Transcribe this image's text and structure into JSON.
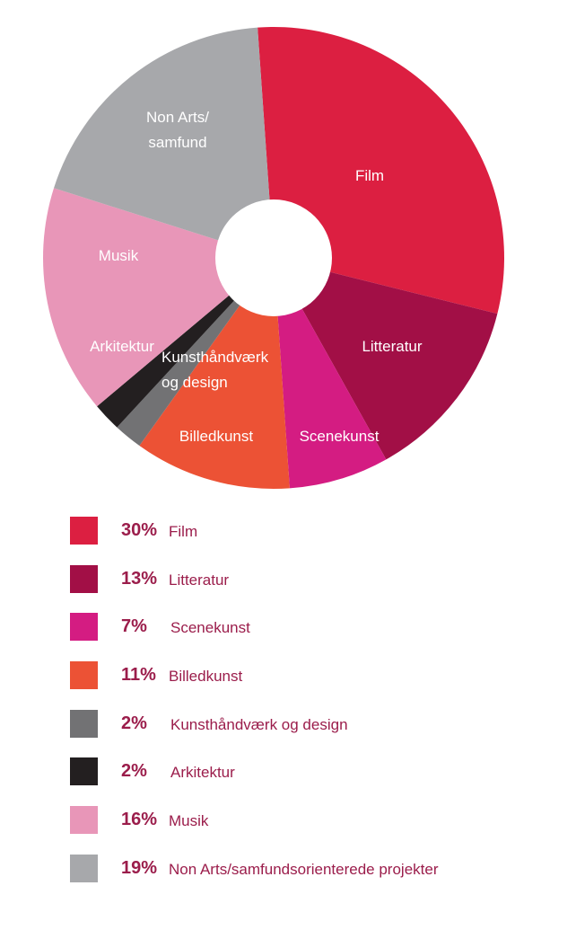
{
  "chart_data": {
    "type": "pie",
    "donut": true,
    "legend_placement": "bottom",
    "slices": [
      {
        "label": "Film",
        "chart_label": "Film",
        "legend_pct": "30%",
        "legend_label": "Film",
        "value": 30,
        "color": "#dc1f41"
      },
      {
        "label": "Litteratur",
        "chart_label": "Litteratur",
        "legend_pct": "13%",
        "legend_label": "Litteratur",
        "value": 13,
        "color": "#a20f46"
      },
      {
        "label": "Scenekunst",
        "chart_label": "Scenekunst",
        "legend_pct": "7%",
        "legend_label": "Scenekunst",
        "value": 7,
        "color": "#d41c82"
      },
      {
        "label": "Billedkunst",
        "chart_label": "Billedkunst",
        "legend_pct": "11%",
        "legend_label": "Billedkunst",
        "value": 11,
        "color": "#ec5235"
      },
      {
        "label": "Kunsthåndværk og design",
        "chart_label": [
          "Kunsthåndværk",
          "og design"
        ],
        "legend_pct": "2%",
        "legend_label": "Kunsthåndværk og design",
        "value": 2,
        "color": "#727274"
      },
      {
        "label": "Arkitektur",
        "chart_label": "Arkitektur",
        "legend_pct": "2%",
        "legend_label": "Arkitektur",
        "value": 2,
        "color": "#231f20"
      },
      {
        "label": "Musik",
        "chart_label": "Musik",
        "legend_pct": "16%",
        "legend_label": "Musik",
        "value": 16,
        "color": "#e896b8"
      },
      {
        "label": "Non Arts/samfundsorienterede projekter",
        "chart_label": [
          "Non Arts/",
          "samfund"
        ],
        "legend_pct": "19%",
        "legend_label": "Non Arts/samfundsorienterede projekter",
        "value": 19,
        "color": "#a7a8ab"
      }
    ]
  }
}
